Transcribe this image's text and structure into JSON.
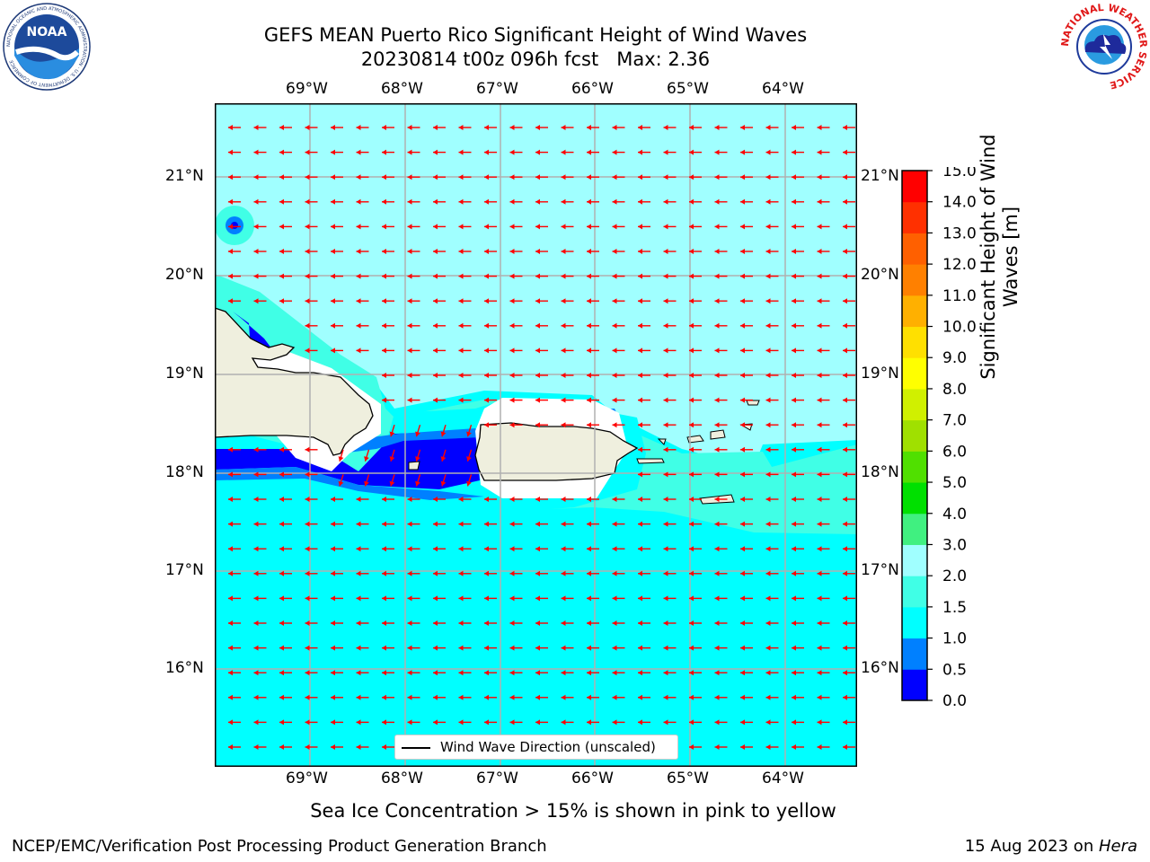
{
  "header": {
    "title_line1": "GEFS MEAN Puerto Rico Significant Height of Wind Waves",
    "title_line2": "20230814 t00z 096h fcst   Max: 2.36"
  },
  "logos": {
    "left": {
      "text": "NOAA",
      "ring_text": "NATIONAL OCEANIC AND ATMOSPHERIC ADMINISTRATION · U.S. DEPARTMENT OF COMMERCE"
    },
    "right": {
      "ring_text": "NATIONAL WEATHER SERVICE"
    }
  },
  "map": {
    "lon_labels": [
      "69°W",
      "68°W",
      "67°W",
      "66°W",
      "65°W",
      "64°W"
    ],
    "lat_labels": [
      "21°N",
      "20°N",
      "19°N",
      "18°N",
      "17°N",
      "16°N"
    ],
    "ocean_color": "#00ffff",
    "land_color": "#efefde",
    "arrow_color": "#ff0000",
    "legend_label": "Wind Wave Direction (unscaled)"
  },
  "colorbar": {
    "label": "Significant Height of Wind Waves [m]",
    "ticks": [
      "0.0",
      "0.5",
      "1.0",
      "1.5",
      "2.0",
      "3.0",
      "4.0",
      "5.0",
      "6.0",
      "7.0",
      "8.0",
      "9.0",
      "10.0",
      "11.0",
      "12.0",
      "13.0",
      "14.0",
      "15.0"
    ],
    "colors": [
      "#0000ff",
      "#0080ff",
      "#00ffff",
      "#40ffe6",
      "#a0ffff",
      "#40f080",
      "#00e000",
      "#50e000",
      "#a0e000",
      "#d0f000",
      "#ffff00",
      "#ffe000",
      "#ffb000",
      "#ff8000",
      "#ff6000",
      "#ff3000",
      "#ff0000"
    ]
  },
  "footer": {
    "sea_ice_note": "Sea Ice Concentration > 15% is shown in pink to yellow",
    "branch": "NCEP/EMC/Verification Post Processing Product Generation Branch",
    "date": "15 Aug 2023 on ",
    "host": "Hera"
  }
}
